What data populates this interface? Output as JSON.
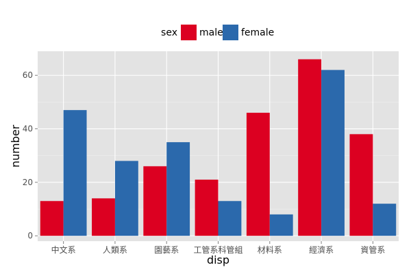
{
  "chart_data": {
    "type": "bar",
    "categories": [
      "中文系",
      "人類系",
      "園藝系",
      "工管系科管組",
      "材料系",
      "經濟系",
      "資管系"
    ],
    "series": [
      {
        "name": "male",
        "values": [
          13,
          14,
          26,
          21,
          46,
          66,
          38
        ],
        "color": "#DC0021"
      },
      {
        "name": "female",
        "values": [
          47,
          28,
          35,
          13,
          8,
          62,
          12
        ],
        "color": "#2B69AC"
      }
    ],
    "xlabel": "disp",
    "ylabel": "number",
    "ylim": [
      -2,
      69
    ],
    "yticks": [
      0,
      20,
      40,
      60
    ],
    "grid": true,
    "legend": {
      "title": "sex",
      "placement": "top-center",
      "items": [
        "male",
        "female"
      ]
    },
    "panel_background": "#E3E3E3",
    "grid_color": "#FFFFFF"
  }
}
